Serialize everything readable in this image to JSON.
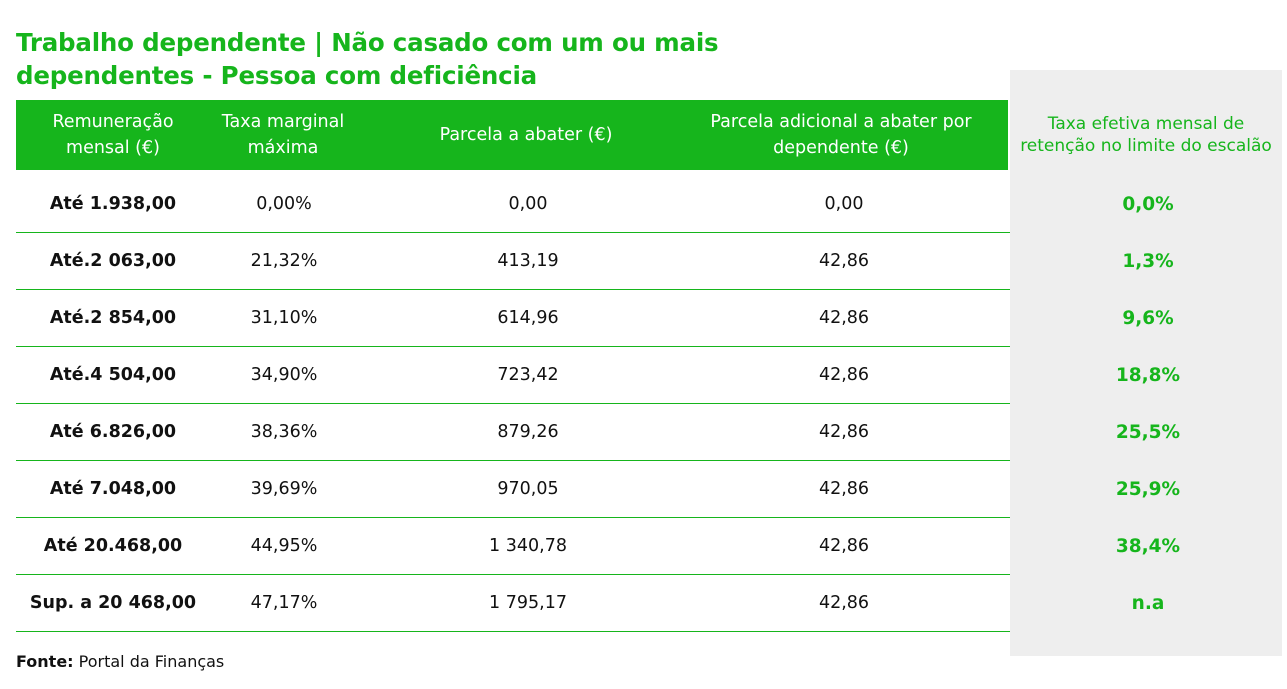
{
  "title": "Trabalho dependente | Não casado com um ou mais dependentes - Pessoa com deficiência",
  "headers": {
    "col1": "Remuneração mensal (€)",
    "col2": "Taxa marginal máxima",
    "col3": "Parcela a abater (€)",
    "col4": "Parcela adicional a abater por dependente (€)",
    "col5": "Taxa efetiva mensal de retenção no limite do escalão"
  },
  "rows": [
    {
      "remuneracao": "Até 1.938,00",
      "taxa": "0,00%",
      "parcela": "0,00",
      "adicional": "0,00",
      "efetiva": "0,0%"
    },
    {
      "remuneracao": "Até.2 063,00",
      "taxa": "21,32%",
      "parcela": "413,19",
      "adicional": "42,86",
      "efetiva": "1,3%"
    },
    {
      "remuneracao": "Até.2 854,00",
      "taxa": "31,10%",
      "parcela": "614,96",
      "adicional": "42,86",
      "efetiva": "9,6%"
    },
    {
      "remuneracao": "Até.4 504,00",
      "taxa": "34,90%",
      "parcela": "723,42",
      "adicional": "42,86",
      "efetiva": "18,8%"
    },
    {
      "remuneracao": "Até 6.826,00",
      "taxa": "38,36%",
      "parcela": "879,26",
      "adicional": "42,86",
      "efetiva": "25,5%"
    },
    {
      "remuneracao": "Até 7.048,00",
      "taxa": "39,69%",
      "parcela": "970,05",
      "adicional": "42,86",
      "efetiva": "25,9%"
    },
    {
      "remuneracao": "Até 20.468,00",
      "taxa": "44,95%",
      "parcela": "1 340,78",
      "adicional": "42,86",
      "efetiva": "38,4%"
    },
    {
      "remuneracao": "Sup. a  20 468,00",
      "taxa": "47,17%",
      "parcela": "1 795,17",
      "adicional": "42,86",
      "efetiva": "n.a"
    }
  ],
  "source": {
    "label": "Fonte:",
    "text": "Portal da Finanças"
  },
  "colors": {
    "accent": "#16b51c",
    "panel": "#eeeeee"
  }
}
